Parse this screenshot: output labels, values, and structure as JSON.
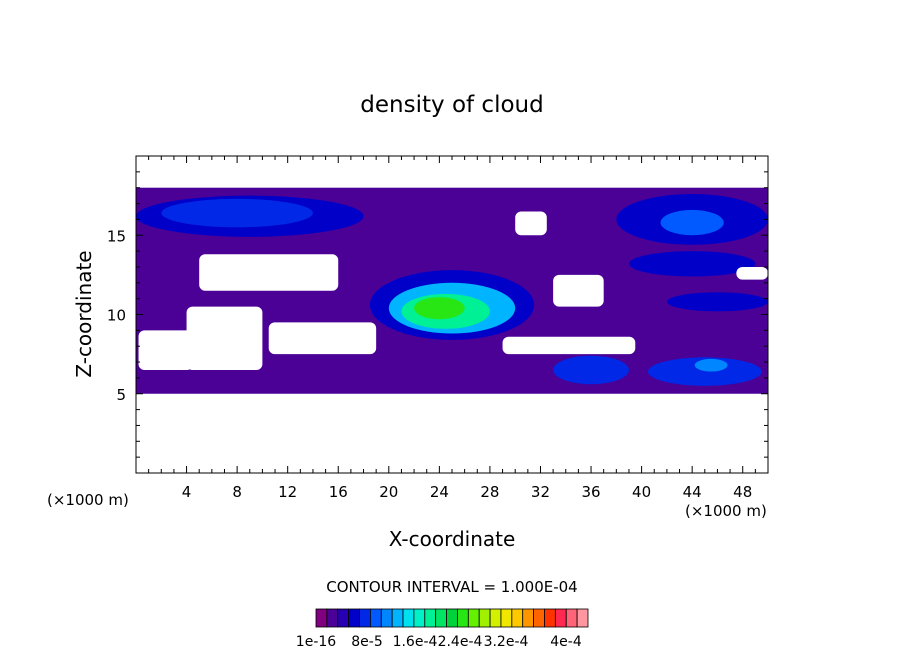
{
  "chart_data": {
    "type": "heatmap",
    "title": "density of cloud",
    "xlabel": "X-coordinate",
    "ylabel": "Z-coordinate",
    "x_unit": "(×1000 m)",
    "y_unit": "(×1000 m)",
    "xlim": [
      0,
      50
    ],
    "ylim": [
      0,
      20
    ],
    "x_ticks": [
      4,
      8,
      12,
      16,
      20,
      24,
      28,
      32,
      36,
      40,
      44,
      48
    ],
    "y_ticks": [
      5,
      10,
      15
    ],
    "contour_interval_text": "CONTOUR INTERVAL = 1.000E-04",
    "colorbar": {
      "min": 1e-16,
      "max": 0.0004,
      "tick_labels": [
        "1e-16",
        "8e-5",
        "1.6e-4",
        "2.4e-4",
        "3.2e-4",
        "4e-4"
      ],
      "colors": [
        "#800080",
        "#4b0096",
        "#2800b4",
        "#0000c8",
        "#0028e6",
        "#005aff",
        "#0087ff",
        "#00b4ff",
        "#00e1f0",
        "#00f0c8",
        "#00f096",
        "#00e664",
        "#00d23c",
        "#28e614",
        "#64f000",
        "#a0f000",
        "#d2f000",
        "#f0e600",
        "#ffc800",
        "#ff9600",
        "#ff6400",
        "#ff3200",
        "#ff2850",
        "#ff6478",
        "#ff96a0"
      ]
    },
    "regions": [
      {
        "level": 1,
        "shape": "band",
        "x": [
          0,
          50
        ],
        "z": [
          5.0,
          18.0
        ]
      },
      {
        "level": 3,
        "shape": "blob",
        "cx": 9,
        "cz": 16.2,
        "rx": 9,
        "rz": 1.3
      },
      {
        "level": 4,
        "shape": "blob",
        "cx": 8,
        "cz": 16.4,
        "rx": 6,
        "rz": 0.9
      },
      {
        "level": 3,
        "shape": "blob",
        "cx": 44,
        "cz": 16.0,
        "rx": 6,
        "rz": 1.6
      },
      {
        "level": 5,
        "shape": "blob",
        "cx": 44,
        "cz": 15.8,
        "rx": 2.5,
        "rz": 0.8
      },
      {
        "level": 3,
        "shape": "blob",
        "cx": 44,
        "cz": 13.2,
        "rx": 5,
        "rz": 0.8
      },
      {
        "level": 3,
        "shape": "blob",
        "cx": 46,
        "cz": 10.8,
        "rx": 4,
        "rz": 0.6
      },
      {
        "level": 3,
        "shape": "blob",
        "cx": 25,
        "cz": 10.6,
        "rx": 6.5,
        "rz": 2.2
      },
      {
        "level": 7,
        "shape": "blob",
        "cx": 25,
        "cz": 10.4,
        "rx": 5,
        "rz": 1.6
      },
      {
        "level": 10,
        "shape": "blob",
        "cx": 24.5,
        "cz": 10.2,
        "rx": 3.5,
        "rz": 1.1
      },
      {
        "level": 13,
        "shape": "blob",
        "cx": 24,
        "cz": 10.4,
        "rx": 2,
        "rz": 0.7
      },
      {
        "level": 4,
        "shape": "blob",
        "cx": 36,
        "cz": 6.5,
        "rx": 3,
        "rz": 0.9
      },
      {
        "level": 4,
        "shape": "blob",
        "cx": 45,
        "cz": 6.4,
        "rx": 4.5,
        "rz": 0.9
      },
      {
        "level": 6,
        "shape": "blob",
        "cx": 45.5,
        "cz": 6.8,
        "rx": 1.3,
        "rz": 0.4
      }
    ],
    "gaps": [
      {
        "x": [
          0.2,
          4.5
        ],
        "z": [
          6.5,
          9.0
        ]
      },
      {
        "x": [
          5,
          16
        ],
        "z": [
          11.5,
          13.8
        ]
      },
      {
        "x": [
          4,
          10
        ],
        "z": [
          6.5,
          10.5
        ]
      },
      {
        "x": [
          10.5,
          19
        ],
        "z": [
          7.5,
          9.5
        ]
      },
      {
        "x": [
          33,
          37
        ],
        "z": [
          10.5,
          12.5
        ]
      },
      {
        "x": [
          29,
          39.5
        ],
        "z": [
          7.5,
          8.6
        ]
      },
      {
        "x": [
          30,
          32.5
        ],
        "z": [
          15.0,
          16.5
        ]
      },
      {
        "x": [
          47.5,
          50
        ],
        "z": [
          12.2,
          13.0
        ]
      }
    ]
  }
}
